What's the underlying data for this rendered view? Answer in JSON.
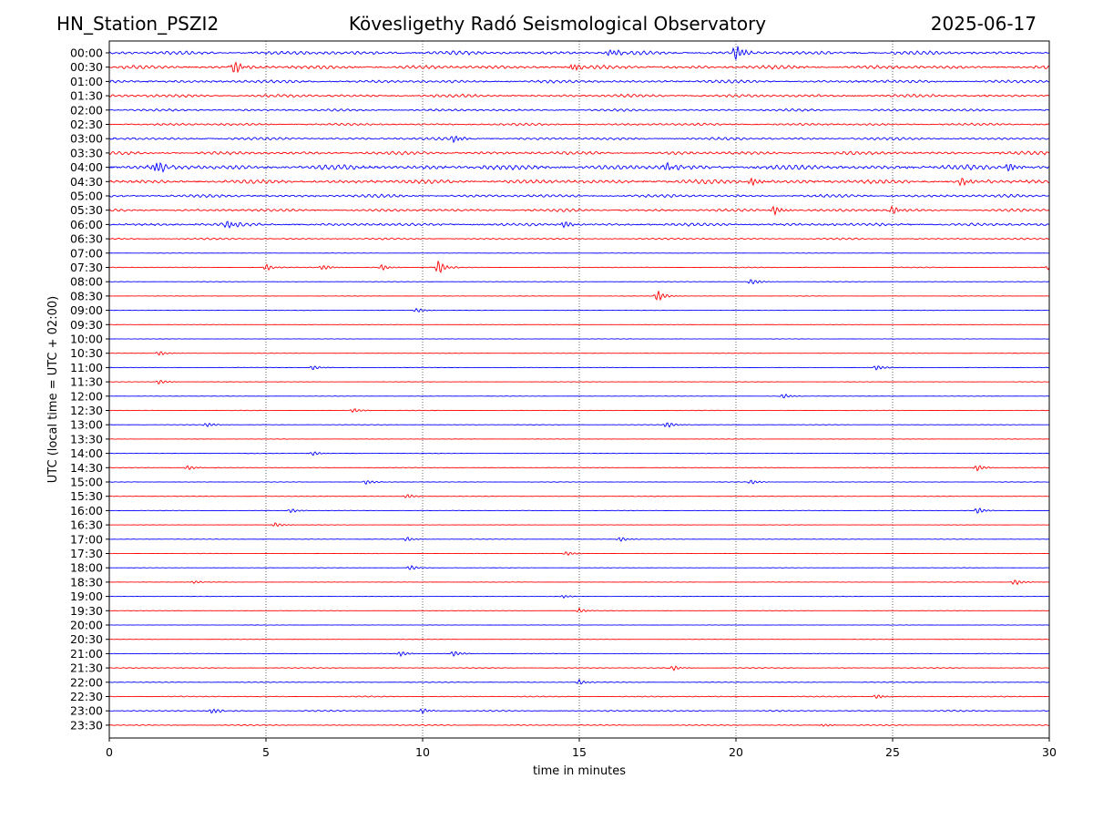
{
  "header": {
    "station": "HN_Station_PSZI2",
    "title": "Kövesligethy Radó Seismological Observatory",
    "date": "2025-06-17"
  },
  "chart_data": {
    "type": "line",
    "title": "Kövesligethy Radó Seismological Observatory",
    "xlabel": "time in minutes",
    "ylabel": "UTC (local time = UTC + 02:00)",
    "xlim": [
      0,
      30
    ],
    "xticks": [
      0,
      5,
      10,
      15,
      20,
      25,
      30
    ],
    "grid": "vertical dotted lines at 5-minute intervals",
    "colors": {
      "blue": "#0000ff",
      "red": "#ff0000"
    },
    "trace_rows": [
      "00:00",
      "00:30",
      "01:00",
      "01:30",
      "02:00",
      "02:30",
      "03:00",
      "03:30",
      "04:00",
      "04:30",
      "05:00",
      "05:30",
      "06:00",
      "06:30",
      "07:00",
      "07:30",
      "08:00",
      "08:30",
      "09:00",
      "09:30",
      "10:00",
      "10:30",
      "11:00",
      "11:30",
      "12:00",
      "12:30",
      "13:00",
      "13:30",
      "14:00",
      "14:30",
      "15:00",
      "15:30",
      "16:00",
      "16:30",
      "17:00",
      "17:30",
      "18:00",
      "18:30",
      "19:00",
      "19:30",
      "20:00",
      "20:30",
      "21:00",
      "21:30",
      "22:00",
      "22:30",
      "23:00",
      "23:30"
    ],
    "row_colors": "alternating blue (on the hour) and red (half hour)",
    "noise_level": [
      0.55,
      0.55,
      0.45,
      0.45,
      0.35,
      0.35,
      0.4,
      0.5,
      0.7,
      0.6,
      0.45,
      0.4,
      0.45,
      0.25,
      0.06,
      0.12,
      0.08,
      0.06,
      0.06,
      0.05,
      0.06,
      0.06,
      0.06,
      0.06,
      0.06,
      0.08,
      0.08,
      0.06,
      0.08,
      0.08,
      0.08,
      0.08,
      0.08,
      0.06,
      0.08,
      0.06,
      0.06,
      0.06,
      0.06,
      0.06,
      0.05,
      0.06,
      0.08,
      0.12,
      0.12,
      0.15,
      0.2,
      0.15
    ],
    "events": [
      {
        "row": "00:30",
        "minute": 4,
        "amp": 9
      },
      {
        "row": "00:30",
        "minute": 14.8,
        "amp": 6
      },
      {
        "row": "00:00",
        "minute": 20,
        "amp": 10
      },
      {
        "row": "00:00",
        "minute": 16,
        "amp": 5
      },
      {
        "row": "03:00",
        "minute": 11,
        "amp": 5
      },
      {
        "row": "04:00",
        "minute": 1.5,
        "amp": 8
      },
      {
        "row": "04:00",
        "minute": 17.8,
        "amp": 6
      },
      {
        "row": "04:00",
        "minute": 28.7,
        "amp": 6
      },
      {
        "row": "04:30",
        "minute": 27.2,
        "amp": 6
      },
      {
        "row": "04:30",
        "minute": 20.5,
        "amp": 5
      },
      {
        "row": "05:30",
        "minute": 21.2,
        "amp": 6
      },
      {
        "row": "05:30",
        "minute": 25,
        "amp": 5
      },
      {
        "row": "06:00",
        "minute": 3.8,
        "amp": 6
      },
      {
        "row": "06:00",
        "minute": 14.5,
        "amp": 5
      },
      {
        "row": "07:30",
        "minute": 10.5,
        "amp": 8
      },
      {
        "row": "07:30",
        "minute": 5,
        "amp": 4
      },
      {
        "row": "07:30",
        "minute": 6.8,
        "amp": 4
      },
      {
        "row": "07:30",
        "minute": 8.7,
        "amp": 4
      },
      {
        "row": "07:30",
        "minute": 30,
        "amp": 4
      },
      {
        "row": "08:00",
        "minute": 20.5,
        "amp": 4
      },
      {
        "row": "08:30",
        "minute": 17.5,
        "amp": 7
      },
      {
        "row": "09:00",
        "minute": 9.8,
        "amp": 3
      },
      {
        "row": "10:30",
        "minute": 1.6,
        "amp": 3
      },
      {
        "row": "11:00",
        "minute": 6.5,
        "amp": 3
      },
      {
        "row": "11:00",
        "minute": 24.5,
        "amp": 3
      },
      {
        "row": "11:30",
        "minute": 1.6,
        "amp": 3
      },
      {
        "row": "12:00",
        "minute": 21.5,
        "amp": 3
      },
      {
        "row": "12:30",
        "minute": 7.8,
        "amp": 3
      },
      {
        "row": "13:00",
        "minute": 17.8,
        "amp": 4
      },
      {
        "row": "13:00",
        "minute": 3.1,
        "amp": 3
      },
      {
        "row": "14:00",
        "minute": 6.5,
        "amp": 3
      },
      {
        "row": "14:30",
        "minute": 2.5,
        "amp": 3
      },
      {
        "row": "14:30",
        "minute": 27.7,
        "amp": 4
      },
      {
        "row": "15:00",
        "minute": 8.2,
        "amp": 3
      },
      {
        "row": "15:00",
        "minute": 20.5,
        "amp": 3
      },
      {
        "row": "15:30",
        "minute": 9.5,
        "amp": 3
      },
      {
        "row": "16:00",
        "minute": 27.7,
        "amp": 4
      },
      {
        "row": "16:00",
        "minute": 5.8,
        "amp": 3
      },
      {
        "row": "16:30",
        "minute": 5.3,
        "amp": 3
      },
      {
        "row": "17:00",
        "minute": 16.3,
        "amp": 3
      },
      {
        "row": "17:00",
        "minute": 9.5,
        "amp": 3
      },
      {
        "row": "17:30",
        "minute": 14.6,
        "amp": 3
      },
      {
        "row": "18:00",
        "minute": 9.6,
        "amp": 3
      },
      {
        "row": "18:30",
        "minute": 28.9,
        "amp": 4
      },
      {
        "row": "18:30",
        "minute": 2.7,
        "amp": 2
      },
      {
        "row": "19:00",
        "minute": 14.5,
        "amp": 2
      },
      {
        "row": "19:30",
        "minute": 15,
        "amp": 3
      },
      {
        "row": "21:00",
        "minute": 11,
        "amp": 4
      },
      {
        "row": "21:00",
        "minute": 9.3,
        "amp": 3
      },
      {
        "row": "21:30",
        "minute": 18,
        "amp": 3
      },
      {
        "row": "22:00",
        "minute": 15,
        "amp": 3
      },
      {
        "row": "22:30",
        "minute": 24.5,
        "amp": 3
      },
      {
        "row": "23:00",
        "minute": 3.3,
        "amp": 4
      },
      {
        "row": "23:00",
        "minute": 10,
        "amp": 3
      },
      {
        "row": "23:30",
        "minute": 22.8,
        "amp": 2
      }
    ]
  }
}
